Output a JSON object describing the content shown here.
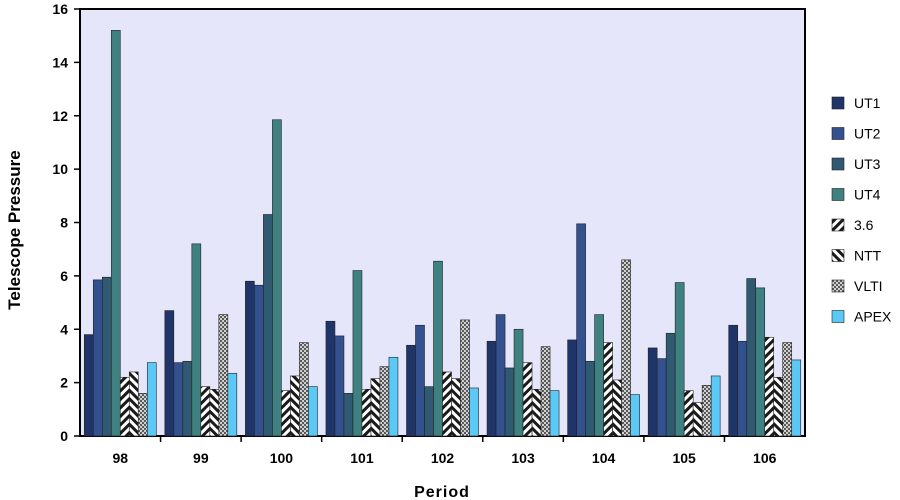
{
  "chart_data": {
    "type": "bar",
    "xlabel": "Period",
    "ylabel": "Telescope Pressure",
    "ylim": [
      0,
      16
    ],
    "yticks": [
      0,
      2,
      4,
      6,
      8,
      10,
      12,
      14,
      16
    ],
    "categories": [
      "98",
      "99",
      "100",
      "101",
      "102",
      "103",
      "104",
      "105",
      "106"
    ],
    "legend_position": "right",
    "plot_background": "#e6e6fa",
    "series": [
      {
        "name": "UT1",
        "color": "#1f3468",
        "pattern": "solid",
        "values": [
          3.8,
          4.7,
          5.8,
          4.3,
          3.4,
          3.55,
          3.6,
          3.3,
          4.15
        ]
      },
      {
        "name": "UT2",
        "color": "#33508f",
        "pattern": "solid",
        "values": [
          5.85,
          2.75,
          5.65,
          3.75,
          4.15,
          4.55,
          7.95,
          2.9,
          3.55
        ]
      },
      {
        "name": "UT3",
        "color": "#2f5a72",
        "pattern": "solid",
        "values": [
          5.95,
          2.8,
          8.3,
          1.6,
          1.85,
          2.55,
          2.8,
          3.85,
          5.9
        ]
      },
      {
        "name": "UT4",
        "color": "#3f8080",
        "pattern": "solid",
        "values": [
          15.2,
          7.2,
          11.85,
          6.2,
          6.55,
          4.0,
          4.55,
          5.75,
          5.55
        ]
      },
      {
        "name": "3.6",
        "color": "#1a1a1a",
        "pattern": "diag-up",
        "values": [
          2.2,
          1.85,
          1.7,
          1.75,
          2.4,
          2.75,
          3.5,
          1.7,
          3.7
        ]
      },
      {
        "name": "NTT",
        "color": "#1a1a1a",
        "pattern": "diag-down",
        "values": [
          2.4,
          1.75,
          2.25,
          2.15,
          2.15,
          1.75,
          2.1,
          1.25,
          2.2
        ]
      },
      {
        "name": "VLTI",
        "color": "#888888",
        "pattern": "checker",
        "values": [
          1.6,
          4.55,
          3.5,
          2.6,
          4.35,
          3.35,
          6.6,
          1.9,
          3.5
        ]
      },
      {
        "name": "APEX",
        "color": "#5bc8f5",
        "pattern": "solid",
        "values": [
          2.75,
          2.35,
          1.85,
          2.95,
          1.8,
          1.7,
          1.55,
          2.25,
          2.85
        ]
      }
    ]
  }
}
